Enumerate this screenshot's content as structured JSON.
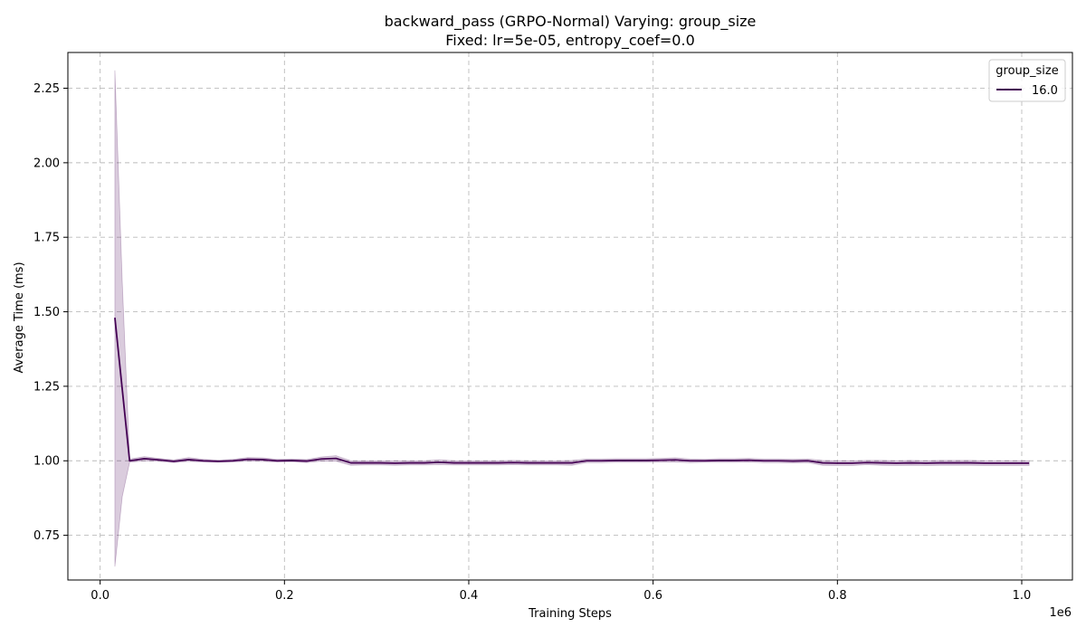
{
  "chart_data": {
    "type": "line",
    "title": "backward_pass (GRPO-Normal) Varying: group_size",
    "subtitle": "Fixed: lr=5e-05, entropy_coef=0.0",
    "xlabel": "Training Steps",
    "ylabel": "Average Time (ms)",
    "x_offset_label": "1e6",
    "xlim": [
      -0.035,
      1.055
    ],
    "ylim": [
      0.6,
      2.37
    ],
    "x_ticks": [
      0.0,
      0.2,
      0.4,
      0.6,
      0.8,
      1.0
    ],
    "x_tick_labels": [
      "0.0",
      "0.2",
      "0.4",
      "0.6",
      "0.8",
      "1.0"
    ],
    "y_ticks": [
      0.75,
      1.0,
      1.25,
      1.5,
      1.75,
      2.0,
      2.25
    ],
    "y_tick_labels": [
      "0.75",
      "1.00",
      "1.25",
      "1.50",
      "1.75",
      "2.00",
      "2.25"
    ],
    "grid": true,
    "legend": {
      "title": "group_size",
      "position": "top-right"
    },
    "series": [
      {
        "name": "16.0",
        "color": "#440154",
        "band_color": "#440154",
        "x": [
          0.016,
          0.024,
          0.032,
          0.048,
          0.064,
          0.08,
          0.096,
          0.112,
          0.128,
          0.144,
          0.16,
          0.176,
          0.192,
          0.208,
          0.224,
          0.24,
          0.256,
          0.272,
          0.288,
          0.304,
          0.32,
          0.336,
          0.352,
          0.368,
          0.384,
          0.4,
          0.416,
          0.432,
          0.448,
          0.464,
          0.48,
          0.496,
          0.512,
          0.528,
          0.544,
          0.56,
          0.576,
          0.592,
          0.608,
          0.624,
          0.64,
          0.656,
          0.672,
          0.688,
          0.704,
          0.72,
          0.736,
          0.752,
          0.768,
          0.784,
          0.8,
          0.816,
          0.832,
          0.848,
          0.864,
          0.88,
          0.896,
          0.912,
          0.928,
          0.944,
          0.96,
          0.976,
          0.992,
          1.008
        ],
        "y": [
          1.48,
          1.24,
          1.0,
          1.007,
          1.003,
          0.998,
          1.004,
          1.0,
          0.998,
          1.0,
          1.005,
          1.004,
          1.0,
          1.001,
          0.999,
          1.006,
          1.008,
          0.993,
          0.993,
          0.993,
          0.992,
          0.993,
          0.993,
          0.995,
          0.993,
          0.993,
          0.993,
          0.993,
          0.994,
          0.993,
          0.993,
          0.993,
          0.993,
          1.0,
          1.0,
          1.001,
          1.001,
          1.001,
          1.002,
          1.003,
          1.0,
          1.0,
          1.001,
          1.001,
          1.002,
          1.0,
          1.0,
          0.999,
          1.0,
          0.993,
          0.992,
          0.992,
          0.994,
          0.993,
          0.992,
          0.993,
          0.992,
          0.993,
          0.993,
          0.993,
          0.992,
          0.992,
          0.992,
          0.992
        ],
        "ci_low": [
          0.645,
          0.88,
          0.995,
          1.0,
          0.998,
          0.994,
          0.998,
          0.996,
          0.995,
          0.996,
          0.999,
          0.998,
          0.996,
          0.997,
          0.994,
          0.999,
          0.999,
          0.985,
          0.986,
          0.986,
          0.985,
          0.986,
          0.986,
          0.987,
          0.986,
          0.986,
          0.986,
          0.986,
          0.987,
          0.986,
          0.986,
          0.986,
          0.985,
          0.994,
          0.994,
          0.995,
          0.995,
          0.995,
          0.996,
          0.996,
          0.994,
          0.995,
          0.995,
          0.995,
          0.996,
          0.994,
          0.994,
          0.993,
          0.994,
          0.985,
          0.984,
          0.984,
          0.987,
          0.985,
          0.984,
          0.985,
          0.984,
          0.985,
          0.985,
          0.985,
          0.984,
          0.984,
          0.984,
          0.984
        ],
        "ci_high": [
          2.31,
          1.6,
          1.006,
          1.014,
          1.008,
          1.003,
          1.011,
          1.005,
          1.002,
          1.005,
          1.011,
          1.01,
          1.005,
          1.006,
          1.004,
          1.013,
          1.017,
          1.0,
          1.0,
          1.0,
          0.999,
          1.0,
          1.0,
          1.003,
          1.0,
          1.0,
          1.0,
          1.0,
          1.001,
          1.0,
          1.0,
          1.0,
          1.001,
          1.006,
          1.006,
          1.007,
          1.007,
          1.007,
          1.008,
          1.01,
          1.006,
          1.005,
          1.007,
          1.007,
          1.008,
          1.006,
          1.006,
          1.005,
          1.006,
          1.001,
          1.0,
          1.0,
          1.001,
          1.001,
          1.0,
          1.001,
          1.0,
          1.001,
          1.001,
          1.001,
          1.0,
          1.0,
          1.0,
          1.0
        ]
      }
    ]
  }
}
